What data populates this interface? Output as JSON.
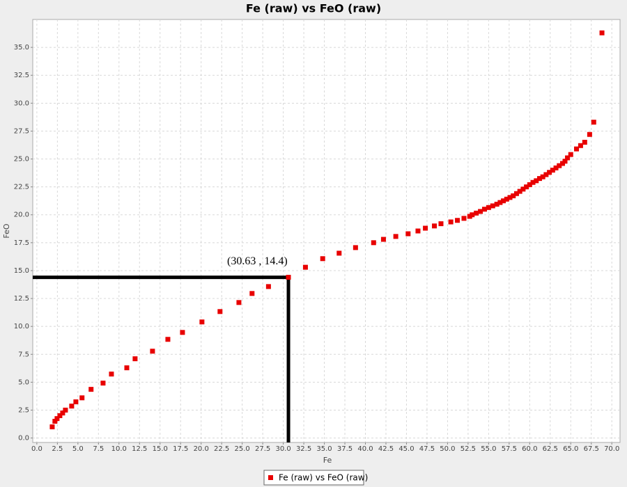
{
  "chart_data": {
    "type": "scatter",
    "title": "Fe (raw) vs FeO (raw)",
    "x_label": "Fe",
    "y_label": "FeO",
    "x": [
      1.87,
      2.2,
      2.46,
      2.8,
      3.14,
      3.48,
      4.24,
      4.75,
      5.5,
      6.6,
      8.06,
      9.08,
      10.95,
      11.96,
      14.08,
      15.95,
      17.73,
      20.1,
      22.3,
      24.6,
      26.2,
      28.2,
      30.63,
      32.7,
      34.8,
      36.8,
      38.8,
      41.0,
      42.2,
      43.7,
      45.2,
      46.4,
      47.3,
      48.4,
      49.2,
      50.4,
      51.2,
      52.0,
      52.7,
      53.0,
      53.5,
      54.0,
      54.5,
      55.0,
      55.5,
      56.0,
      56.4,
      56.8,
      57.2,
      57.6,
      58.0,
      58.4,
      58.8,
      59.2,
      59.6,
      60.0,
      60.4,
      60.8,
      61.2,
      61.6,
      62.0,
      62.4,
      62.8,
      63.2,
      63.6,
      64.0,
      64.3,
      64.6,
      65.0,
      65.7,
      66.2,
      66.7,
      67.3,
      67.8,
      68.8
    ],
    "series": [
      {
        "name": "Fe (raw) vs FeO (raw)",
        "color": "#e80000",
        "values": [
          1.0,
          1.5,
          1.74,
          2.0,
          2.24,
          2.5,
          2.86,
          3.24,
          3.6,
          4.36,
          4.92,
          5.73,
          6.29,
          7.1,
          7.78,
          8.84,
          9.46,
          10.4,
          11.33,
          12.14,
          12.95,
          13.57,
          14.4,
          15.3,
          16.07,
          16.56,
          17.06,
          17.5,
          17.8,
          18.06,
          18.3,
          18.55,
          18.8,
          19.0,
          19.2,
          19.36,
          19.5,
          19.68,
          19.86,
          20.0,
          20.15,
          20.3,
          20.5,
          20.65,
          20.8,
          20.95,
          21.1,
          21.25,
          21.4,
          21.55,
          21.7,
          21.9,
          22.1,
          22.3,
          22.5,
          22.7,
          22.9,
          23.05,
          23.25,
          23.4,
          23.6,
          23.8,
          24.0,
          24.2,
          24.4,
          24.6,
          24.8,
          25.1,
          25.4,
          25.9,
          26.2,
          26.5,
          27.2,
          28.3,
          36.3
        ]
      }
    ],
    "annotation": {
      "text": "(30.63 , 14.4)",
      "x": 30.63,
      "y": 14.4
    },
    "xlim": [
      -0.5,
      71.0
    ],
    "ylim": [
      -0.4,
      37.5
    ],
    "xticks": [
      {
        "value": 0,
        "label": "0.0"
      },
      {
        "value": 2.5,
        "label": "2.5"
      },
      {
        "value": 5,
        "label": "5.0"
      },
      {
        "value": 7.5,
        "label": "7.5"
      },
      {
        "value": 10,
        "label": "10.0"
      },
      {
        "value": 12.5,
        "label": "12.5"
      },
      {
        "value": 15,
        "label": "15.0"
      },
      {
        "value": 17.5,
        "label": "17.5"
      },
      {
        "value": 20,
        "label": "20.0"
      },
      {
        "value": 22.5,
        "label": "22.5"
      },
      {
        "value": 25,
        "label": "25.0"
      },
      {
        "value": 27.5,
        "label": "27.5"
      },
      {
        "value": 30,
        "label": "30.0"
      },
      {
        "value": 32.5,
        "label": "32.5"
      },
      {
        "value": 35,
        "label": "35.0"
      },
      {
        "value": 37.5,
        "label": "37.5"
      },
      {
        "value": 40,
        "label": "40.0"
      },
      {
        "value": 42.5,
        "label": "42.5"
      },
      {
        "value": 45,
        "label": "45.0"
      },
      {
        "value": 47.5,
        "label": "47.5"
      },
      {
        "value": 50,
        "label": "50.0"
      },
      {
        "value": 52.5,
        "label": "52.5"
      },
      {
        "value": 55,
        "label": "55.0"
      },
      {
        "value": 57.5,
        "label": "57.5"
      },
      {
        "value": 60,
        "label": "60.0"
      },
      {
        "value": 62.5,
        "label": "62.5"
      },
      {
        "value": 65,
        "label": "65.0"
      },
      {
        "value": 67.5,
        "label": "67.5"
      },
      {
        "value": 70,
        "label": "70.0"
      }
    ],
    "yticks": [
      {
        "value": 0,
        "label": "0.0"
      },
      {
        "value": 2.5,
        "label": "2.5"
      },
      {
        "value": 5,
        "label": "5.0"
      },
      {
        "value": 7.5,
        "label": "7.5"
      },
      {
        "value": 10,
        "label": "10.0"
      },
      {
        "value": 12.5,
        "label": "12.5"
      },
      {
        "value": 15,
        "label": "15.0"
      },
      {
        "value": 17.5,
        "label": "17.5"
      },
      {
        "value": 20,
        "label": "20.0"
      },
      {
        "value": 22.5,
        "label": "22.5"
      },
      {
        "value": 25,
        "label": "25.0"
      },
      {
        "value": 27.5,
        "label": "27.5"
      },
      {
        "value": 30,
        "label": "30.0"
      },
      {
        "value": 32.5,
        "label": "32.5"
      },
      {
        "value": 35,
        "label": "35.0"
      }
    ],
    "grid": true
  }
}
